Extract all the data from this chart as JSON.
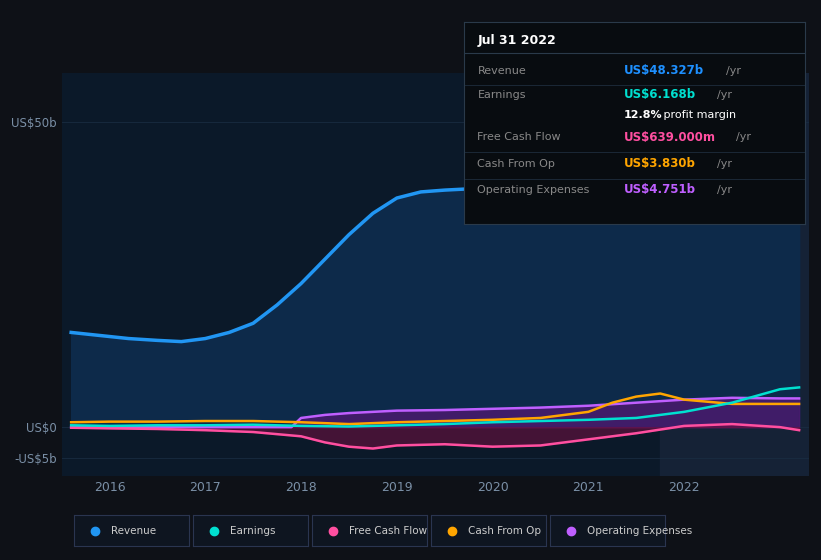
{
  "bg_color": "#0e1117",
  "plot_bg_color": "#0b1929",
  "highlight_bg": "#152236",
  "title": "Jul 31 2022",
  "info_box": {
    "rows": [
      {
        "label": "Revenue",
        "value": "US$48.327b",
        "value_color": "#1e90ff"
      },
      {
        "label": "Earnings",
        "value": "US$6.168b",
        "value_color": "#00e0d0"
      },
      {
        "label": "",
        "value": "12.8% profit margin",
        "value_color": "#ffffff"
      },
      {
        "label": "Free Cash Flow",
        "value": "US$639.000m",
        "value_color": "#ff4fa0"
      },
      {
        "label": "Cash From Op",
        "value": "US$3.830b",
        "value_color": "#ffa500"
      },
      {
        "label": "Operating Expenses",
        "value": "US$4.751b",
        "value_color": "#bf5fff"
      }
    ]
  },
  "x_ticks": [
    2016,
    2017,
    2018,
    2019,
    2020,
    2021,
    2022
  ],
  "y_ticks_labels": [
    "US$50b",
    "US$0",
    "-US$5b"
  ],
  "y_ticks_values": [
    50,
    0,
    -5
  ],
  "ylim": [
    -8,
    58
  ],
  "xlim": [
    2015.5,
    2023.3
  ],
  "grid_color": "#1a2d42",
  "revenue": {
    "x": [
      2015.6,
      2015.9,
      2016.2,
      2016.5,
      2016.75,
      2017.0,
      2017.25,
      2017.5,
      2017.75,
      2018.0,
      2018.25,
      2018.5,
      2018.75,
      2019.0,
      2019.25,
      2019.5,
      2019.75,
      2020.0,
      2020.25,
      2020.5,
      2020.75,
      2021.0,
      2021.25,
      2021.5,
      2021.75,
      2022.0,
      2022.25,
      2022.5,
      2022.75,
      2023.0,
      2023.2
    ],
    "y": [
      15.5,
      15.0,
      14.5,
      14.2,
      14.0,
      14.5,
      15.5,
      17.0,
      20.0,
      23.5,
      27.5,
      31.5,
      35.0,
      37.5,
      38.5,
      38.8,
      39.0,
      38.5,
      37.5,
      36.5,
      36.8,
      37.5,
      39.0,
      41.5,
      44.0,
      46.5,
      48.0,
      49.0,
      50.0,
      51.0,
      51.5
    ],
    "color": "#2196f3",
    "fill_color": "#0d2a4a",
    "linewidth": 2.5
  },
  "earnings": {
    "x": [
      2015.6,
      2016.0,
      2016.5,
      2017.0,
      2017.5,
      2018.0,
      2018.5,
      2019.0,
      2019.5,
      2020.0,
      2020.5,
      2021.0,
      2021.5,
      2022.0,
      2022.5,
      2023.0,
      2023.2
    ],
    "y": [
      0.3,
      0.2,
      0.3,
      0.3,
      0.4,
      0.2,
      0.1,
      0.3,
      0.5,
      0.8,
      1.0,
      1.2,
      1.5,
      2.5,
      4.0,
      6.2,
      6.5
    ],
    "color": "#00e0d0",
    "linewidth": 1.8
  },
  "free_cash_flow": {
    "x": [
      2015.6,
      2016.0,
      2016.5,
      2017.0,
      2017.5,
      2018.0,
      2018.25,
      2018.5,
      2018.75,
      2019.0,
      2019.5,
      2020.0,
      2020.5,
      2021.0,
      2021.5,
      2022.0,
      2022.5,
      2023.0,
      2023.2
    ],
    "y": [
      -0.1,
      -0.2,
      -0.3,
      -0.5,
      -0.8,
      -1.5,
      -2.5,
      -3.2,
      -3.5,
      -3.0,
      -2.8,
      -3.2,
      -3.0,
      -2.0,
      -1.0,
      0.2,
      0.5,
      0.0,
      -0.5
    ],
    "color": "#ff4fa0",
    "fill_color": "#6b1040",
    "linewidth": 1.8
  },
  "cash_from_op": {
    "x": [
      2015.6,
      2016.0,
      2016.5,
      2017.0,
      2017.5,
      2018.0,
      2018.5,
      2019.0,
      2019.5,
      2020.0,
      2020.5,
      2021.0,
      2021.25,
      2021.5,
      2021.75,
      2022.0,
      2022.5,
      2023.0,
      2023.2
    ],
    "y": [
      0.8,
      0.9,
      0.9,
      1.0,
      1.0,
      0.8,
      0.5,
      0.8,
      1.0,
      1.2,
      1.5,
      2.5,
      4.0,
      5.0,
      5.5,
      4.5,
      3.8,
      3.8,
      3.8
    ],
    "color": "#ffa500",
    "linewidth": 1.8
  },
  "operating_expenses": {
    "x": [
      2015.6,
      2016.0,
      2016.5,
      2017.0,
      2017.5,
      2017.9,
      2018.0,
      2018.25,
      2018.5,
      2018.75,
      2019.0,
      2019.5,
      2020.0,
      2020.5,
      2021.0,
      2021.5,
      2022.0,
      2022.5,
      2023.0,
      2023.2
    ],
    "y": [
      0.0,
      0.0,
      0.0,
      0.0,
      0.0,
      0.0,
      1.5,
      2.0,
      2.3,
      2.5,
      2.7,
      2.8,
      3.0,
      3.2,
      3.5,
      4.0,
      4.5,
      4.8,
      4.7,
      4.7
    ],
    "color": "#bf5fff",
    "fill_color": "#4a1a6e",
    "linewidth": 1.8
  },
  "highlight_x_start": 2021.75,
  "legend": [
    {
      "label": "Revenue",
      "color": "#2196f3"
    },
    {
      "label": "Earnings",
      "color": "#00e0d0"
    },
    {
      "label": "Free Cash Flow",
      "color": "#ff4fa0"
    },
    {
      "label": "Cash From Op",
      "color": "#ffa500"
    },
    {
      "label": "Operating Expenses",
      "color": "#bf5fff"
    }
  ]
}
